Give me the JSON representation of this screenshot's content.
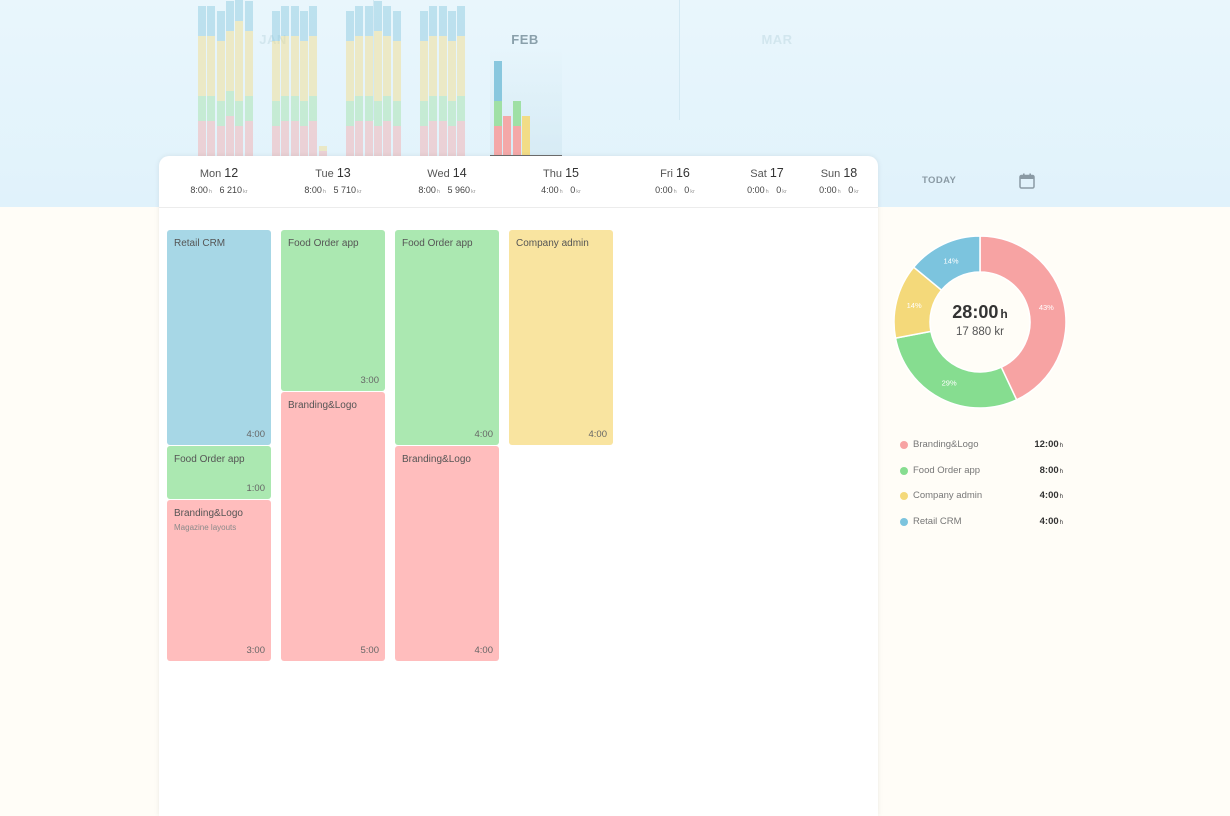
{
  "timeline": {
    "months": [
      {
        "label": "JAN",
        "state": "faded"
      },
      {
        "label": "FEB",
        "state": "active"
      },
      {
        "label": "MAR",
        "state": "faded"
      }
    ]
  },
  "week": {
    "days": [
      {
        "name": "Mon",
        "date": "12",
        "hours": "8:00",
        "amount": "6 210"
      },
      {
        "name": "Tue",
        "date": "13",
        "hours": "8:00",
        "amount": "5 710"
      },
      {
        "name": "Wed",
        "date": "14",
        "hours": "8:00",
        "amount": "5 960"
      },
      {
        "name": "Thu",
        "date": "15",
        "hours": "4:00",
        "amount": "0"
      },
      {
        "name": "Fri",
        "date": "16",
        "hours": "0:00",
        "amount": "0"
      },
      {
        "name": "Sat",
        "date": "17",
        "hours": "0:00",
        "amount": "0"
      },
      {
        "name": "Sun",
        "date": "18",
        "hours": "0:00",
        "amount": "0"
      }
    ],
    "hours_unit": "h",
    "amount_unit": "kr"
  },
  "events": [
    {
      "day": 0,
      "title": "Retail CRM",
      "sub": "",
      "time": "4:00",
      "color": "blue"
    },
    {
      "day": 0,
      "title": "Food Order app",
      "sub": "",
      "time": "1:00",
      "color": "green"
    },
    {
      "day": 0,
      "title": "Branding&Logo",
      "sub": "Magazine layouts",
      "time": "3:00",
      "color": "pink"
    },
    {
      "day": 1,
      "title": "Food Order app",
      "sub": "",
      "time": "3:00",
      "color": "green"
    },
    {
      "day": 1,
      "title": "Branding&Logo",
      "sub": "",
      "time": "5:00",
      "color": "pink"
    },
    {
      "day": 2,
      "title": "Food Order app",
      "sub": "",
      "time": "4:00",
      "color": "green"
    },
    {
      "day": 2,
      "title": "Branding&Logo",
      "sub": "",
      "time": "4:00",
      "color": "pink"
    },
    {
      "day": 3,
      "title": "Company admin",
      "sub": "",
      "time": "4:00",
      "color": "yellow"
    }
  ],
  "sidebar": {
    "today_label": "TODAY",
    "calendar_icon": "calendar-icon",
    "total_hours": "28:00",
    "total_hours_unit": "h",
    "total_amount": "17 880 kr"
  },
  "chart_data": {
    "type": "pie",
    "labels": [
      "Branding&Logo",
      "Food Order app",
      "Company admin",
      "Retail CRM"
    ],
    "values": [
      43,
      29,
      14,
      14
    ],
    "value_labels": [
      "43%",
      "29%",
      "14%",
      "14%"
    ],
    "colors": [
      "#f7a3a3",
      "#86dd90",
      "#f4d97a",
      "#7cc4de"
    ]
  },
  "legend": [
    {
      "label": "Branding&Logo",
      "value": "12:00",
      "unit": "h",
      "color": "#f7a3a3"
    },
    {
      "label": "Food Order app",
      "value": "8:00",
      "unit": "h",
      "color": "#86dd90"
    },
    {
      "label": "Company admin",
      "value": "4:00",
      "unit": "h",
      "color": "#f4d97a"
    },
    {
      "label": "Retail CRM",
      "value": "4:00",
      "unit": "h",
      "color": "#7cc4de"
    }
  ]
}
